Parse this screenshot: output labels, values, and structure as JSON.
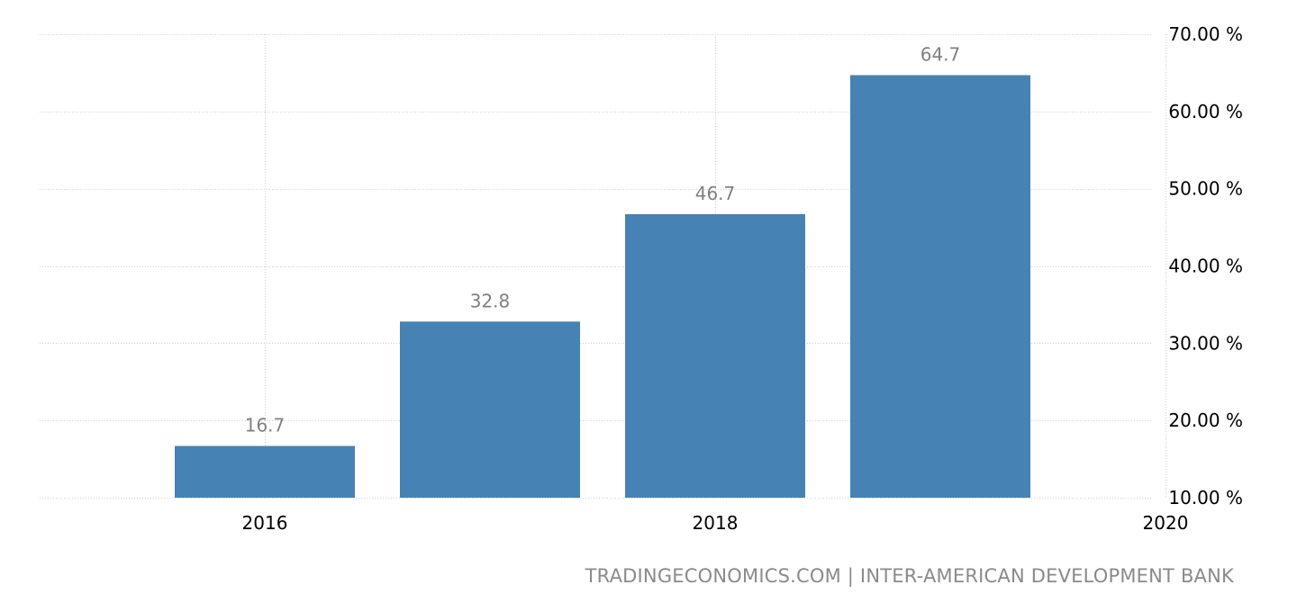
{
  "chart_data": {
    "type": "bar",
    "categories": [
      "2016",
      "2017",
      "2018",
      "2019"
    ],
    "values": [
      16.7,
      32.8,
      46.7,
      64.7
    ],
    "value_labels": [
      "16.7",
      "32.8",
      "46.7",
      "64.7"
    ],
    "title": "",
    "xlabel": "",
    "ylabel": "",
    "ylim": [
      10,
      70
    ],
    "xlim": [
      2015,
      2020
    ],
    "y_ticks": [
      10,
      20,
      30,
      40,
      50,
      60,
      70
    ],
    "y_tick_labels": [
      "10.00 %",
      "20.00 %",
      "30.00 %",
      "40.00 %",
      "50.00 %",
      "60.00 %",
      "70.00 %"
    ],
    "x_ticks": [
      2016,
      2018,
      2020
    ],
    "x_tick_labels": [
      "2016",
      "2018",
      "2020"
    ],
    "y_axis_side": "right",
    "grid": true,
    "legend": "none",
    "bar_color": "#4682b4"
  },
  "source_text": "TRADINGECONOMICS.COM | INTER-AMERICAN DEVELOPMENT BANK"
}
